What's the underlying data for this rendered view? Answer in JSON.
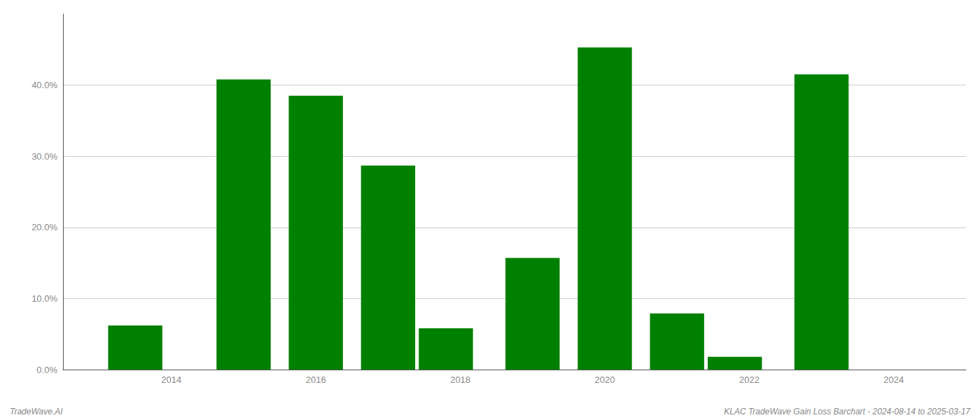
{
  "chart_data": {
    "type": "bar",
    "x": [
      2013.5,
      2015,
      2016,
      2017,
      2017.8,
      2019,
      2020,
      2021,
      2021.8,
      2023
    ],
    "values": [
      0.062,
      0.408,
      0.385,
      0.287,
      0.058,
      0.157,
      0.453,
      0.079,
      0.018,
      0.415
    ],
    "color": "#008000",
    "xlim": [
      2012.5,
      2025.0
    ],
    "xticks": [
      2014,
      2016,
      2018,
      2020,
      2022,
      2024
    ],
    "ylim": [
      0,
      0.5
    ],
    "yticks": [
      {
        "value": 0.0,
        "label": "0.0%"
      },
      {
        "value": 0.1,
        "label": "10.0%"
      },
      {
        "value": 0.2,
        "label": "20.0%"
      },
      {
        "value": 0.3,
        "label": "30.0%"
      },
      {
        "value": 0.4,
        "label": "40.0%"
      }
    ],
    "grid": true,
    "annotations": [
      "TradeWave.AI",
      "KLAC TradeWave Gain Loss Barchart - 2024-08-14 to 2025-03-17"
    ]
  }
}
